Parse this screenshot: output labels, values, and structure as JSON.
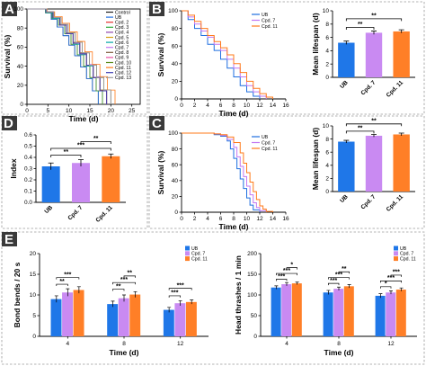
{
  "panels": {
    "A": {
      "label": "A"
    },
    "B": {
      "label": "B"
    },
    "C": {
      "label": "C"
    },
    "D": {
      "label": "D"
    },
    "E": {
      "label": "E"
    }
  },
  "colors": {
    "UB": "#1f6fe0",
    "Cpd. 7": "#c277f2",
    "Cpd. 11": "#ff7a1a",
    "bar_UB": "#1f77e8",
    "bar_7": "#c98af2",
    "bar_11": "#ff7f27"
  },
  "chart_data": [
    {
      "id": "A",
      "type": "line",
      "xlabel": "Time (d)",
      "ylabel": "Survival (%)",
      "xlim": [
        0,
        27
      ],
      "ylim": [
        0,
        100
      ],
      "xticks": [
        0,
        5,
        10,
        15,
        20,
        25
      ],
      "yticks": [
        0,
        20,
        40,
        60,
        80,
        100
      ],
      "legend": [
        "Control",
        "UB",
        "Cpd. 2",
        "Cpd. 3",
        "Cpd. 4",
        "Cpd. 5",
        "Cpd. 6",
        "Cpd. 7",
        "Cpd. 8",
        "Cpd. 9",
        "Cpd. 10",
        "Cpd. 11",
        "Cpd. 12",
        "Cpd. 13"
      ],
      "legend_position": "top-right",
      "series_colors": [
        "#222222",
        "#1f6fe0",
        "#e52f2f",
        "#2eaa3a",
        "#8e44ad",
        "#d4a017",
        "#00a6a6",
        "#c277f2",
        "#7d5a3a",
        "#e84fa0",
        "#5b8c1f",
        "#ff7a1a",
        "#3b3bb3",
        "#9f9f9f"
      ],
      "median_days": [
        11,
        11,
        12,
        12,
        12.5,
        13,
        12,
        13.5,
        13,
        12.5,
        13,
        14,
        12.5,
        13
      ],
      "max_days": [
        17,
        17,
        18,
        18,
        19,
        19,
        19,
        20,
        19,
        19,
        20,
        21,
        19,
        20
      ]
    },
    {
      "id": "B_surv",
      "type": "line",
      "xlabel": "Time (d)",
      "ylabel": "Survival (%)",
      "xlim": [
        0,
        16
      ],
      "ylim": [
        0,
        100
      ],
      "xticks": [
        0,
        2,
        4,
        6,
        8,
        10,
        12,
        14,
        16
      ],
      "yticks": [
        0,
        20,
        40,
        60,
        80,
        100
      ],
      "legend": [
        "UB",
        "Cpd. 7",
        "Cpd. 11"
      ],
      "legend_position": "top-right",
      "series": [
        {
          "name": "UB",
          "x": [
            0,
            1,
            2,
            3,
            4,
            5,
            6,
            7,
            8,
            9,
            10,
            11,
            12
          ],
          "y": [
            100,
            90,
            80,
            72,
            62,
            55,
            45,
            35,
            25,
            15,
            8,
            3,
            0
          ]
        },
        {
          "name": "Cpd. 7",
          "x": [
            0,
            1,
            2,
            3,
            4,
            5,
            6,
            7,
            8,
            9,
            10,
            11,
            12,
            13
          ],
          "y": [
            100,
            93,
            85,
            77,
            70,
            62,
            55,
            45,
            35,
            25,
            15,
            8,
            3,
            0
          ]
        },
        {
          "name": "Cpd. 11",
          "x": [
            0,
            1,
            2,
            3,
            4,
            5,
            6,
            7,
            8,
            9,
            10,
            11,
            12,
            13,
            14
          ],
          "y": [
            100,
            95,
            88,
            80,
            72,
            65,
            58,
            50,
            40,
            30,
            20,
            12,
            6,
            2,
            0
          ]
        }
      ]
    },
    {
      "id": "B_bar",
      "type": "bar",
      "ylabel": "Mean lifespan (d)",
      "categories": [
        "UB",
        "Cpd. 7",
        "Cpd. 11"
      ],
      "values": [
        5.2,
        6.7,
        6.9
      ],
      "errors": [
        0.25,
        0.25,
        0.25
      ],
      "ylim": [
        0,
        10
      ],
      "yticks": [
        0,
        2,
        4,
        6,
        8,
        10
      ],
      "brackets": [
        {
          "from": 0,
          "to": 1,
          "label": "**",
          "y": 7.5
        },
        {
          "from": 0,
          "to": 2,
          "label": "**",
          "y": 8.8
        }
      ]
    },
    {
      "id": "C_surv",
      "type": "line",
      "xlabel": "Time (d)",
      "ylabel": "Survival (%)",
      "xlim": [
        0,
        16
      ],
      "ylim": [
        0,
        100
      ],
      "xticks": [
        0,
        2,
        4,
        6,
        8,
        10,
        12,
        14,
        16
      ],
      "yticks": [
        0,
        20,
        40,
        60,
        80,
        100
      ],
      "legend": [
        "UB",
        "Cpd. 7",
        "Cpd. 11"
      ],
      "legend_position": "top-right",
      "series": [
        {
          "name": "UB",
          "x": [
            0,
            4,
            5,
            6,
            7,
            7.5,
            8,
            8.5,
            9,
            9.5,
            10,
            10.5,
            11,
            12
          ],
          "y": [
            100,
            100,
            98,
            96,
            90,
            80,
            68,
            55,
            42,
            30,
            18,
            9,
            3,
            0
          ]
        },
        {
          "name": "Cpd. 7",
          "x": [
            0,
            4,
            5,
            6,
            7,
            8,
            8.5,
            9,
            9.5,
            10,
            10.5,
            11,
            11.5,
            12,
            13
          ],
          "y": [
            100,
            100,
            99,
            97,
            92,
            82,
            70,
            58,
            45,
            33,
            22,
            12,
            6,
            2,
            0
          ]
        },
        {
          "name": "Cpd. 11",
          "x": [
            0,
            4,
            5,
            6,
            7,
            8,
            9,
            9.5,
            10,
            10.5,
            11,
            11.5,
            12,
            12.5,
            13,
            14
          ],
          "y": [
            100,
            100,
            99,
            98,
            95,
            88,
            75,
            62,
            50,
            38,
            26,
            16,
            8,
            4,
            1,
            0
          ]
        }
      ]
    },
    {
      "id": "C_bar",
      "type": "bar",
      "ylabel": "Mean lifespan (d)",
      "categories": [
        "UB",
        "Cpd. 7",
        "Cpd. 11"
      ],
      "values": [
        7.6,
        8.5,
        8.7
      ],
      "errors": [
        0.2,
        0.2,
        0.2
      ],
      "ylim": [
        0,
        10
      ],
      "yticks": [
        0,
        2,
        4,
        6,
        8,
        10
      ],
      "brackets": [
        {
          "from": 0,
          "to": 1,
          "label": "**",
          "y": 9.2
        },
        {
          "from": 0,
          "to": 2,
          "label": "**",
          "y": 10.3
        }
      ]
    },
    {
      "id": "D",
      "type": "bar",
      "ylabel": "Index",
      "categories": [
        "UB",
        "Cpd. 7",
        "Cpd. 11"
      ],
      "values": [
        0.32,
        0.35,
        0.41
      ],
      "errors": [
        0.03,
        0.03,
        0.02
      ],
      "ylim": [
        0,
        0.6
      ],
      "yticks": [
        0.0,
        0.1,
        0.2,
        0.3,
        0.4,
        0.5,
        0.6
      ],
      "brackets": [
        {
          "from": 0,
          "to": 1,
          "label": "**",
          "y": 0.42
        },
        {
          "from": 0,
          "to": 2,
          "label": "***",
          "y": 0.48
        },
        {
          "from": 1,
          "to": 2,
          "label": "**",
          "y": 0.54
        }
      ]
    },
    {
      "id": "E_bends",
      "type": "bar",
      "xlabel": "Time (d)",
      "ylabel": "Bond bends / 20 s",
      "categories": [
        "4",
        "8",
        "12"
      ],
      "ylim": [
        0,
        20
      ],
      "yticks": [
        0,
        5,
        10,
        15,
        20
      ],
      "legend": [
        "UB",
        "Cpd. 7",
        "Cpd. 11"
      ],
      "legend_position": "top-right",
      "series": [
        {
          "name": "UB",
          "values": [
            9.0,
            7.8,
            6.4
          ],
          "errors": [
            0.8,
            0.7,
            0.6
          ]
        },
        {
          "name": "Cpd. 7",
          "values": [
            10.6,
            9.2,
            8.0
          ],
          "errors": [
            0.9,
            0.8,
            0.6
          ]
        },
        {
          "name": "Cpd. 11",
          "values": [
            11.2,
            10.1,
            8.3
          ],
          "errors": [
            0.8,
            0.7,
            0.5
          ]
        }
      ],
      "brackets": [
        {
          "group": 0,
          "from": 0,
          "to": 1,
          "label": "**",
          "y": 12.6
        },
        {
          "group": 0,
          "from": 0,
          "to": 2,
          "label": "***",
          "y": 14.2
        },
        {
          "group": 1,
          "from": 0,
          "to": 1,
          "label": "**",
          "y": 11.4
        },
        {
          "group": 1,
          "from": 0,
          "to": 2,
          "label": "***",
          "y": 13.0
        },
        {
          "group": 1,
          "from": 1,
          "to": 2,
          "label": "**",
          "y": 14.6
        },
        {
          "group": 2,
          "from": 0,
          "to": 1,
          "label": "***",
          "y": 9.8
        },
        {
          "group": 2,
          "from": 0,
          "to": 2,
          "label": "***",
          "y": 11.6
        }
      ]
    },
    {
      "id": "E_head",
      "type": "bar",
      "xlabel": "Time (d)",
      "ylabel": "Head thrashes / 1 min",
      "categories": [
        "4",
        "8",
        "12"
      ],
      "ylim": [
        0,
        200
      ],
      "yticks": [
        0,
        50,
        100,
        150,
        200
      ],
      "legend": [
        "UB",
        "Cpd. 7",
        "Cpd. 11"
      ],
      "legend_position": "top-right",
      "series": [
        {
          "name": "UB",
          "values": [
            118,
            106,
            98
          ],
          "errors": [
            4,
            5,
            5
          ]
        },
        {
          "name": "Cpd. 7",
          "values": [
            126,
            115,
            106
          ],
          "errors": [
            4,
            4,
            4
          ]
        },
        {
          "name": "Cpd. 11",
          "values": [
            128,
            121,
            113
          ],
          "errors": [
            3,
            4,
            4
          ]
        }
      ],
      "brackets": [
        {
          "group": 0,
          "from": 0,
          "to": 1,
          "label": "***",
          "y": 138
        },
        {
          "group": 0,
          "from": 0,
          "to": 2,
          "label": "***",
          "y": 152
        },
        {
          "group": 0,
          "from": 1,
          "to": 2,
          "label": "*",
          "y": 166
        },
        {
          "group": 1,
          "from": 0,
          "to": 1,
          "label": "***",
          "y": 128
        },
        {
          "group": 1,
          "from": 0,
          "to": 2,
          "label": "***",
          "y": 142
        },
        {
          "group": 1,
          "from": 1,
          "to": 2,
          "label": "**",
          "y": 156
        },
        {
          "group": 2,
          "from": 0,
          "to": 1,
          "label": "*",
          "y": 120
        },
        {
          "group": 2,
          "from": 0,
          "to": 2,
          "label": "***",
          "y": 134
        },
        {
          "group": 2,
          "from": 1,
          "to": 2,
          "label": "***",
          "y": 148
        }
      ]
    }
  ]
}
